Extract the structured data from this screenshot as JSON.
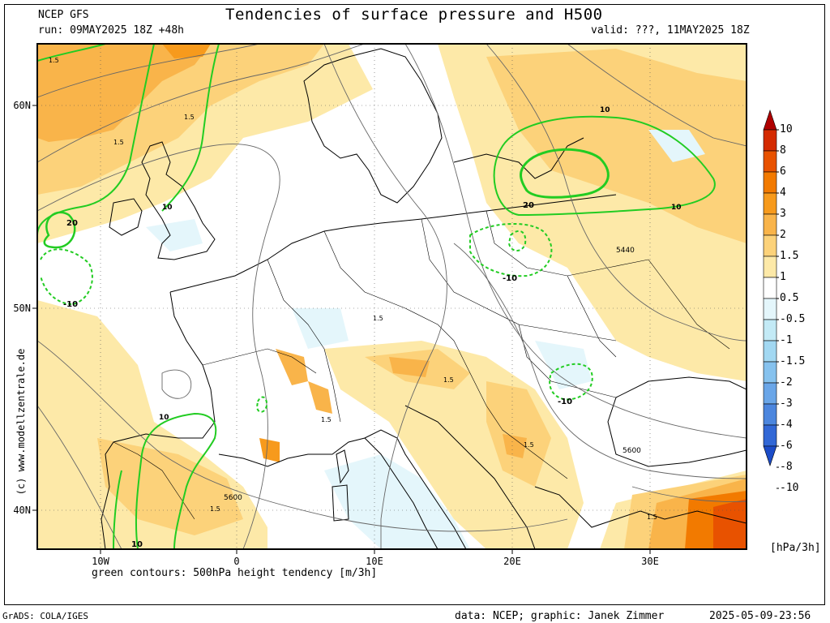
{
  "header": {
    "model": "NCEP GFS",
    "title": "Tendencies of surface pressure and H500",
    "run": "run: 09MAY2025 18Z +48h",
    "valid": "valid: ???, 11MAY2025 18Z"
  },
  "axes": {
    "lat_labels": [
      "60N",
      "50N",
      "40N"
    ],
    "lon_labels": [
      "10W",
      "0",
      "10E",
      "20E",
      "30E"
    ]
  },
  "contour_labels": {
    "green": [
      "10",
      "20",
      "-10",
      "10",
      "20",
      "10",
      "-10",
      "-10",
      "-10",
      "10",
      "10"
    ],
    "pressure_tendency": [
      "1.5",
      "1.5",
      "1.5",
      "1.5",
      "1.5",
      "1.5",
      "1.5",
      "1.5",
      "1.5"
    ],
    "height": [
      "5440",
      "5600",
      "5600"
    ]
  },
  "colorbar": {
    "levels": [
      "10",
      "8",
      "6",
      "4",
      "3",
      "2",
      "1.5",
      "1",
      "0.5",
      "-0.5",
      "-1",
      "-1.5",
      "-2",
      "-3",
      "-4",
      "-6",
      "-8",
      "-10"
    ],
    "unit": "[hPa/3h]",
    "colors": [
      "#b00000",
      "#d42a00",
      "#e85200",
      "#f27a00",
      "#f79a1c",
      "#f9b44a",
      "#fcd27a",
      "#fde9a8",
      "#ffffff",
      "#e4f6fb",
      "#c3eaf6",
      "#a2d8f2",
      "#86c2ee",
      "#6aa6e8",
      "#4c86de",
      "#3268d6",
      "#1c4cc8"
    ]
  },
  "colors": {
    "height_tendency_contour": "#22cc22",
    "pressure_contour": "#666666",
    "coastline": "#000000",
    "grid": "#555555"
  },
  "footer": {
    "contour_note": "green contours: 500hPa height tendency [m/3h]",
    "software": "GrADS: COLA/IGES",
    "credit": "data: NCEP; graphic: Janek Zimmer",
    "timestamp": "2025-05-09-23:56",
    "watermark": "(c) www.modellzentrale.de"
  }
}
